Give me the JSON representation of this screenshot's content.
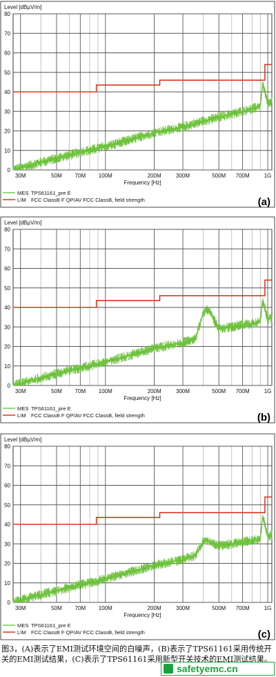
{
  "chart_data": [
    {
      "type": "line",
      "panel_label": "(a)",
      "ylabel": "Level [dBµV/m]",
      "xlabel": "Frequency [Hz]",
      "x_scale": "log",
      "xlim": [
        27,
        1060
      ],
      "ylim": [
        0,
        80
      ],
      "grid": true,
      "x_ticks": [
        {
          "label": "30M",
          "value": 30
        },
        {
          "label": "50M",
          "value": 50
        },
        {
          "label": "70M",
          "value": 70
        },
        {
          "label": "100M",
          "value": 100
        },
        {
          "label": "200M",
          "value": 200
        },
        {
          "label": "300M",
          "value": 300
        },
        {
          "label": "500M",
          "value": 500
        },
        {
          "label": "700M",
          "value": 700
        },
        {
          "label": "1G",
          "value": 1000
        }
      ],
      "y_ticks": [
        0,
        10,
        20,
        30,
        40,
        50,
        60,
        70,
        80
      ],
      "legend": [
        {
          "prefix": "MES",
          "text": "TPS61161_pre E",
          "color": "#7cc84a"
        },
        {
          "prefix": "LIM",
          "text": "FCC ClassB F QP/AV    FCC ClassB, field strength",
          "color": "#d63a1e"
        }
      ],
      "series": [
        {
          "name": "MES TPS61161_pre E",
          "color": "#6cc23a",
          "x": [
            27,
            30,
            40,
            50,
            70,
            100,
            150,
            200,
            300,
            400,
            500,
            700,
            850,
            900,
            930,
            1000,
            1060
          ],
          "y": [
            0,
            1,
            4,
            6,
            9,
            12,
            16,
            19,
            22,
            25,
            27,
            30,
            32,
            33,
            44,
            34,
            35
          ]
        },
        {
          "name": "LIM FCC ClassB F QP/AV",
          "color": "#d63a1e",
          "step": true,
          "x": [
            27,
            88,
            88,
            216,
            216,
            960,
            960,
            1060
          ],
          "y": [
            40,
            40,
            43.5,
            43.5,
            46,
            46,
            54,
            54
          ]
        }
      ]
    },
    {
      "type": "line",
      "panel_label": "(b)",
      "ylabel": "Level [dBµV/m]",
      "xlabel": "Frequency [Hz]",
      "x_scale": "log",
      "xlim": [
        27,
        1060
      ],
      "ylim": [
        0,
        80
      ],
      "grid": true,
      "x_ticks": [
        {
          "label": "30M",
          "value": 30
        },
        {
          "label": "50M",
          "value": 50
        },
        {
          "label": "70M",
          "value": 70
        },
        {
          "label": "100M",
          "value": 100
        },
        {
          "label": "200M",
          "value": 200
        },
        {
          "label": "300M",
          "value": 300
        },
        {
          "label": "500M",
          "value": 500
        },
        {
          "label": "700M",
          "value": 700
        },
        {
          "label": "1G",
          "value": 1000
        }
      ],
      "y_ticks": [
        0,
        10,
        20,
        30,
        40,
        50,
        60,
        70,
        80
      ],
      "legend": [
        {
          "prefix": "MES",
          "text": "TPS61161_pre E",
          "color": "#7cc84a"
        },
        {
          "prefix": "LIM",
          "text": "FCC ClassB F QP/AV    FCC ClassB, field strength",
          "color": "#d63a1e"
        }
      ],
      "series": [
        {
          "name": "MES TPS61161_pre E",
          "color": "#6cc23a",
          "x": [
            27,
            30,
            40,
            50,
            70,
            100,
            150,
            200,
            300,
            360,
            380,
            400,
            420,
            440,
            470,
            500,
            600,
            700,
            850,
            900,
            930,
            1000,
            1060
          ],
          "y": [
            0,
            1,
            4,
            6,
            9,
            12,
            16,
            19,
            22,
            24,
            31,
            37,
            39,
            38,
            33,
            29,
            30,
            31,
            32,
            33,
            44,
            34,
            35
          ]
        },
        {
          "name": "LIM FCC ClassB F QP/AV",
          "color": "#d63a1e",
          "step": true,
          "x": [
            27,
            88,
            88,
            216,
            216,
            960,
            960,
            1060
          ],
          "y": [
            40,
            40,
            43.5,
            43.5,
            46,
            46,
            54,
            54
          ]
        }
      ]
    },
    {
      "type": "line",
      "panel_label": "(c)",
      "ylabel": "Level [dBµV/m]",
      "xlabel": "Frequency [Hz]",
      "x_scale": "log",
      "xlim": [
        27,
        1060
      ],
      "ylim": [
        0,
        80
      ],
      "grid": true,
      "x_ticks": [
        {
          "label": "30M",
          "value": 30
        },
        {
          "label": "50M",
          "value": 50
        },
        {
          "label": "70M",
          "value": 70
        },
        {
          "label": "100M",
          "value": 100
        },
        {
          "label": "200M",
          "value": 200
        },
        {
          "label": "300M",
          "value": 300
        },
        {
          "label": "500M",
          "value": 500
        },
        {
          "label": "700M",
          "value": 700
        },
        {
          "label": "1G",
          "value": 1000
        }
      ],
      "y_ticks": [
        0,
        10,
        20,
        30,
        40,
        50,
        60,
        70,
        80
      ],
      "legend": [
        {
          "prefix": "MES",
          "text": "TPS61161_pre E",
          "color": "#7cc84a"
        },
        {
          "prefix": "LIM",
          "text": "FCC ClassB F QP/AV    FCC ClassB, field strength",
          "color": "#d63a1e"
        }
      ],
      "series": [
        {
          "name": "MES TPS61161_pre E",
          "color": "#6cc23a",
          "x": [
            27,
            30,
            40,
            50,
            70,
            100,
            150,
            200,
            300,
            360,
            380,
            400,
            420,
            440,
            470,
            500,
            600,
            700,
            850,
            900,
            930,
            1000,
            1060
          ],
          "y": [
            0,
            1,
            4,
            6,
            9,
            12,
            16,
            19,
            22,
            24,
            28,
            31,
            32,
            31,
            30,
            29,
            30,
            31,
            32,
            33,
            44,
            34,
            35
          ]
        },
        {
          "name": "LIM FCC ClassB F QP/AV",
          "color": "#d63a1e",
          "step": true,
          "x": [
            27,
            88,
            88,
            216,
            216,
            960,
            960,
            1060
          ],
          "y": [
            40,
            40,
            43.5,
            43.5,
            46,
            46,
            54,
            54
          ]
        }
      ]
    }
  ],
  "caption": {
    "text": "图3，(A)表示了EMI测试环境空间的白噪声，(B)表示了TPS61161采用传统开关的EMI测试结果，(C)表示了TPS61161采用新型开关技术的EMI测试结果。"
  },
  "watermark": {
    "text": "safetyemc.cn"
  }
}
